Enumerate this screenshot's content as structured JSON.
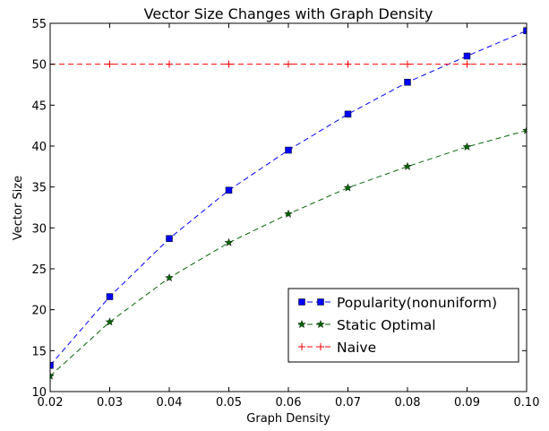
{
  "chart_data": {
    "type": "line",
    "title": "Vector Size Changes with Graph Density",
    "xlabel": "Graph Density",
    "ylabel": "Vector Size",
    "xlim": [
      0.02,
      0.1
    ],
    "ylim": [
      10,
      55
    ],
    "grid": false,
    "legend_position": "lower-right",
    "x": [
      0.02,
      0.03,
      0.04,
      0.05,
      0.06,
      0.07,
      0.08,
      0.09,
      0.1
    ],
    "x_tick_labels": [
      "0.02",
      "0.03",
      "0.04",
      "0.05",
      "0.06",
      "0.07",
      "0.08",
      "0.09",
      "0.10"
    ],
    "y_ticks": [
      10,
      15,
      20,
      25,
      30,
      35,
      40,
      45,
      50,
      55
    ],
    "y_tick_labels": [
      "10",
      "15",
      "20",
      "25",
      "30",
      "35",
      "40",
      "45",
      "50",
      "55"
    ],
    "series": [
      {
        "name": "Popularity(nonuniform)",
        "color": "#0000ff",
        "marker": "square",
        "values": [
          13.2,
          21.6,
          28.7,
          34.6,
          39.5,
          43.9,
          47.8,
          51.0,
          54.1
        ]
      },
      {
        "name": "Static Optimal",
        "color": "#006400",
        "marker": "star",
        "values": [
          11.9,
          18.5,
          23.9,
          28.2,
          31.7,
          34.9,
          37.5,
          39.9,
          41.9
        ]
      },
      {
        "name": "Naive",
        "color": "#ff0000",
        "marker": "plus",
        "values": [
          50,
          50,
          50,
          50,
          50,
          50,
          50,
          50,
          50
        ]
      }
    ]
  }
}
